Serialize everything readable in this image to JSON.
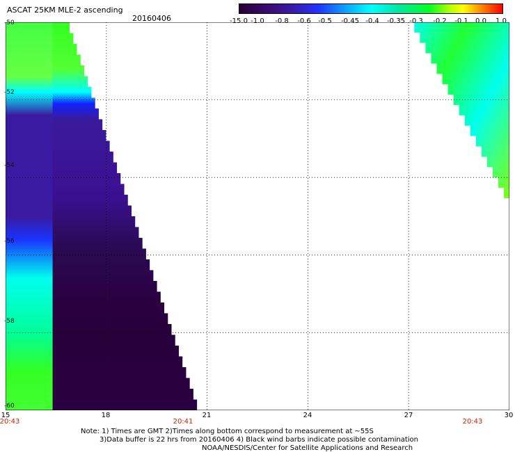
{
  "header": {
    "title": "ASCAT 25KM MLE-2 ascending",
    "date": "20160406"
  },
  "colorbar": {
    "ticks": [
      "-15.0",
      "-1.0",
      "-0.8",
      "-0.6",
      "-0.5",
      "-0.45",
      "-0.4",
      "-0.35",
      "-0.3",
      "-0.2",
      "-0.1",
      "0.0",
      "1.0"
    ]
  },
  "map": {
    "lon_range": [
      15,
      30
    ],
    "lat_range": [
      -60,
      -50
    ],
    "x_ticks": [
      "15",
      "18",
      "21",
      "24",
      "27",
      "30"
    ],
    "y_ticks": [
      "-50",
      "-52",
      "-54",
      "-56",
      "-58",
      "-60"
    ],
    "time_labels": [
      "20:43",
      "20:41",
      "20:43"
    ],
    "swaths": [
      {
        "name": "west-swath",
        "lon_west": 15.0,
        "lat_top": -50.0,
        "lat_bottom": -60.0,
        "edge_lon_top": 16.8,
        "edge_lon_bottom": 20.7
      },
      {
        "name": "east-swath",
        "lon_east": 30.0,
        "lat_top": -50.0,
        "lat_bottom": -54.8,
        "edge_lon_top": 27.0
      }
    ]
  },
  "notes": {
    "line1": "Note: 1) Times are GMT 2)Times along bottom correspond to measurement at ~55S",
    "line2": "3)Data buffer is 22 hrs from 20160406 4) Black wind barbs indicate possible contamination",
    "line3": "NOAA/NESDIS/Center for Satellite Applications and Research"
  }
}
